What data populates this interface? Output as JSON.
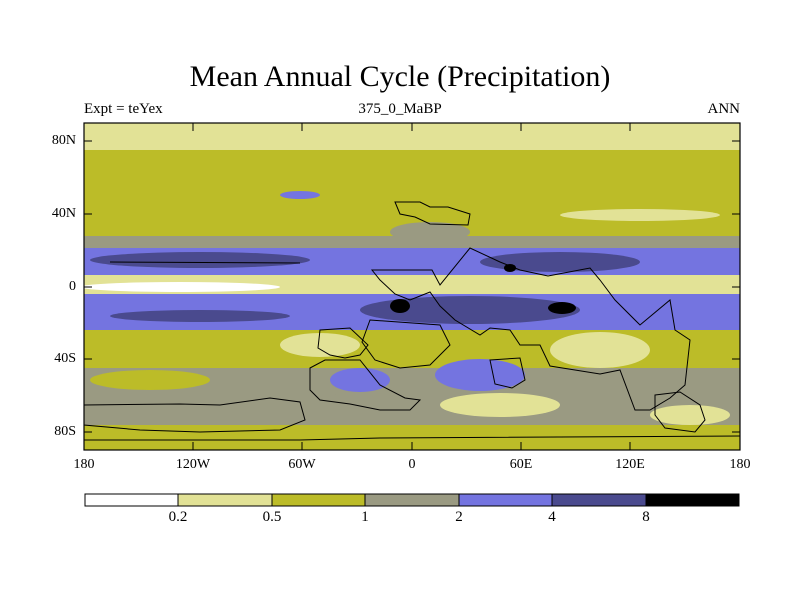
{
  "title": "Mean Annual Cycle (Precipitation)",
  "subtitle_left": "Expt = teYex",
  "subtitle_center": "375_0_MaBP",
  "subtitle_right": "ANN",
  "y_ticks": [
    "80N",
    "40N",
    "0",
    "40S",
    "80S"
  ],
  "x_ticks": [
    "180",
    "120W",
    "60W",
    "0",
    "60E",
    "120E",
    "180"
  ],
  "colorbar": {
    "labels": [
      "0.2",
      "0.5",
      "1",
      "2",
      "4",
      "8"
    ],
    "colors": [
      "#ffffff",
      "#e2e296",
      "#bcbc28",
      "#9a9a82",
      "#7474e0",
      "#4a4a8e",
      "#000000"
    ]
  }
}
